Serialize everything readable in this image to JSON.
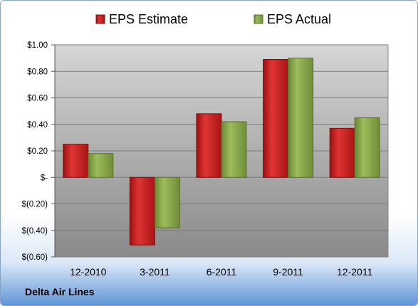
{
  "company": "Delta Air Lines",
  "chart_data": {
    "type": "bar",
    "categories": [
      "12-2010",
      "3-2011",
      "6-2011",
      "9-2011",
      "12-2011"
    ],
    "series": [
      {
        "name": "EPS Estimate",
        "values": [
          0.25,
          -0.51,
          0.48,
          0.89,
          0.37
        ],
        "color": "#cc1f1f"
      },
      {
        "name": "EPS Actual",
        "values": [
          0.18,
          -0.38,
          0.42,
          0.9,
          0.45
        ],
        "color": "#8aaa4a"
      }
    ],
    "ylim": [
      -0.6,
      1.0
    ],
    "y_ticks": [
      1.0,
      0.8,
      0.6,
      0.4,
      0.2,
      0,
      -0.2,
      -0.4,
      -0.6
    ],
    "y_tick_labels": [
      "$1.00",
      "$0.80",
      "$0.60",
      "$0.40",
      "$0.20",
      "$-",
      "$(0.20)",
      "$(0.40)",
      "$(0.60)"
    ],
    "legend_position": "top",
    "grid": true
  }
}
